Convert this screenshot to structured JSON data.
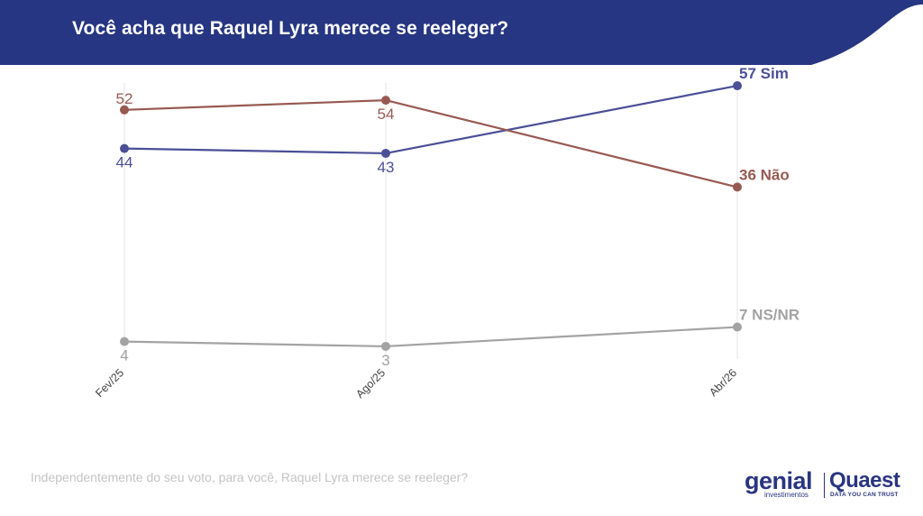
{
  "header": {
    "title": "Você acha que Raquel Lyra merece se reeleger?",
    "color": "#273682"
  },
  "chart_data": {
    "type": "line",
    "title": "Você acha que Raquel Lyra merece se reeleger?",
    "categories": [
      "Fev/25",
      "Ago/25",
      "Abr/26"
    ],
    "ylim": [
      0,
      60
    ],
    "grid": "vertical",
    "series": [
      {
        "name": "Sim",
        "values": [
          44,
          43,
          57
        ],
        "color": "#4b4f97",
        "labels": [
          "44",
          "43",
          "57 Sim"
        ]
      },
      {
        "name": "Não",
        "values": [
          52,
          54,
          36
        ],
        "color": "#985952",
        "labels": [
          "52",
          "54",
          "36 Não"
        ]
      },
      {
        "name": "NS/NR",
        "values": [
          4,
          3,
          7
        ],
        "color": "#a3a3a3",
        "labels": [
          "4",
          "3",
          "7 NS/NR"
        ]
      }
    ]
  },
  "footnote": "Independentemente do seu voto, para você, Raquel Lyra merece se reeleger?",
  "logos": {
    "genial_name": "genial",
    "genial_sub": "investimentos",
    "quaest_name": "Quaest",
    "quaest_tagline": "DATA YOU CAN TRUST"
  }
}
